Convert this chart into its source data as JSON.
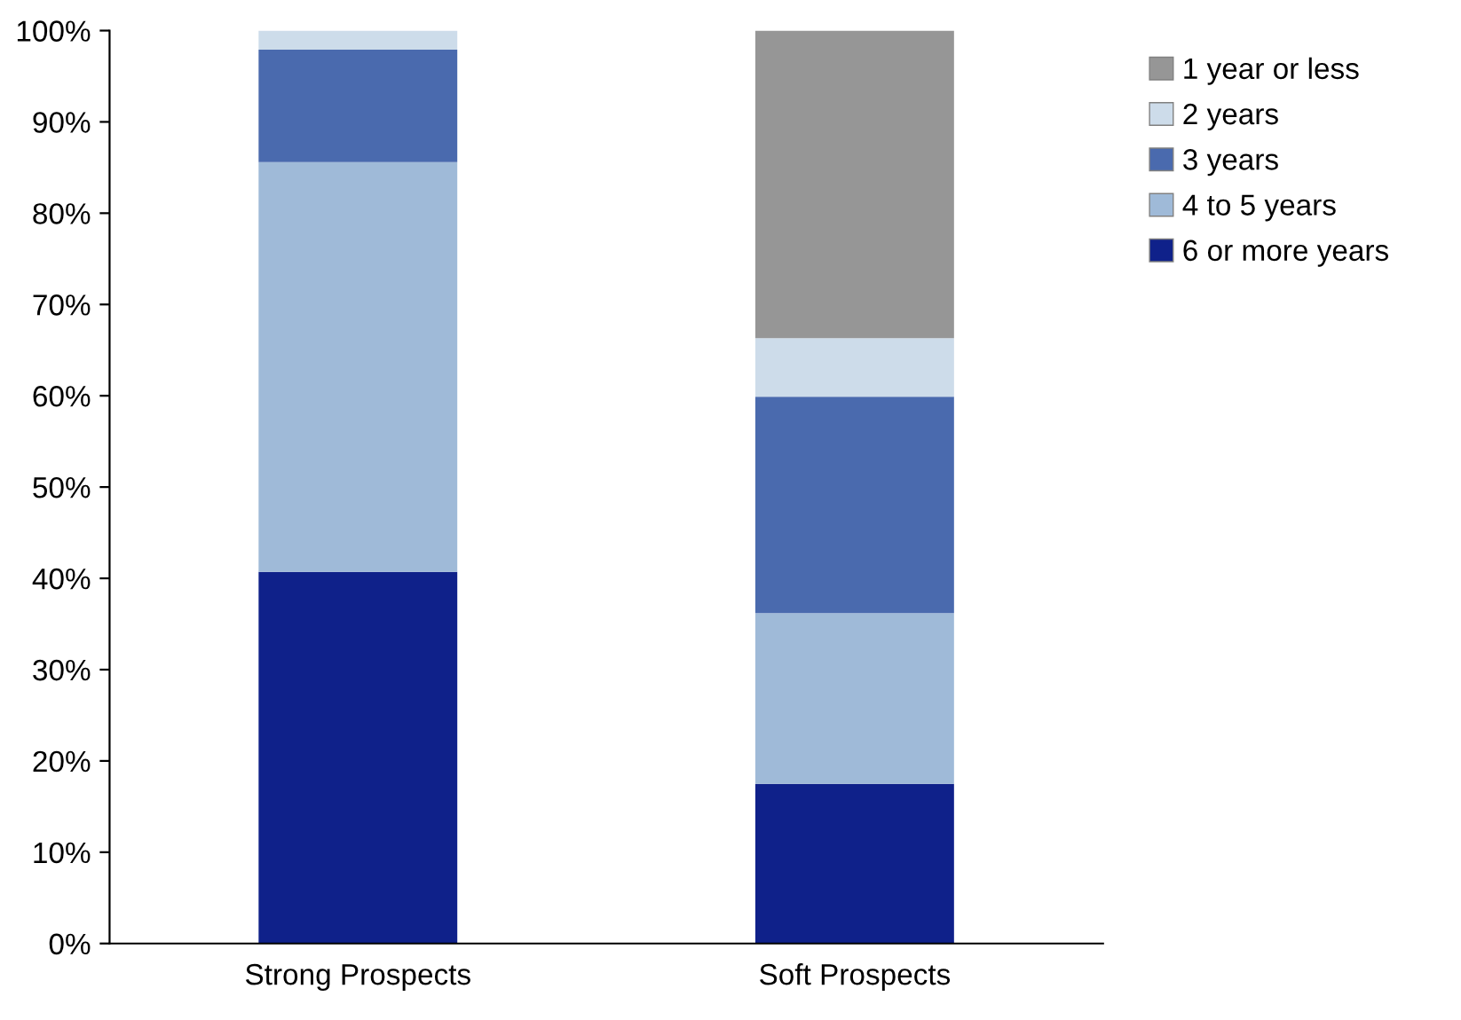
{
  "chart_data": {
    "type": "bar",
    "stacked": true,
    "categories": [
      "Strong Prospects",
      "Soft Prospects"
    ],
    "series": [
      {
        "name": "6 or more years",
        "color": "#0f218a",
        "values": [
          40.7,
          17.5
        ]
      },
      {
        "name": "4 to 5 years",
        "color": "#9fbad8",
        "values": [
          44.9,
          18.7
        ]
      },
      {
        "name": "3 years",
        "color": "#4a6aae",
        "values": [
          12.3,
          23.7
        ]
      },
      {
        "name": "2 years",
        "color": "#cddcea",
        "values": [
          2.1,
          6.4
        ]
      },
      {
        "name": "1 year or less",
        "color": "#969696",
        "values": [
          0,
          33.7
        ]
      }
    ],
    "ylim": [
      0,
      100
    ],
    "yticks": [
      {
        "value": 0,
        "label": "0%"
      },
      {
        "value": 10,
        "label": "10%"
      },
      {
        "value": 20,
        "label": "20%"
      },
      {
        "value": 30,
        "label": "30%"
      },
      {
        "value": 40,
        "label": "40%"
      },
      {
        "value": 50,
        "label": "50%"
      },
      {
        "value": 60,
        "label": "60%"
      },
      {
        "value": 70,
        "label": "70%"
      },
      {
        "value": 80,
        "label": "80%"
      },
      {
        "value": 90,
        "label": "90%"
      },
      {
        "value": 100,
        "label": "100%"
      }
    ],
    "grid": false,
    "legend": "right"
  }
}
